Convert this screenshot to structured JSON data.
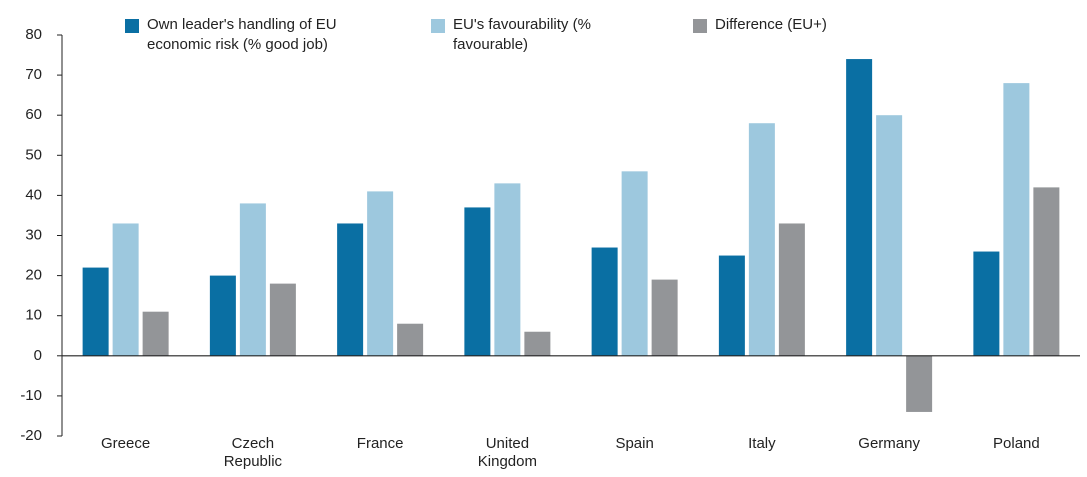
{
  "chart_data": {
    "type": "bar",
    "categories": [
      "Greece",
      "Czech Republic",
      "France",
      "United Kingdom",
      "Spain",
      "Italy",
      "Germany",
      "Poland"
    ],
    "series": [
      {
        "name": "Own leader's handling of EU economic risk (% good job)",
        "color": "#0a6fa3",
        "values": [
          22,
          20,
          33,
          37,
          27,
          25,
          74,
          26
        ]
      },
      {
        "name": "EU's favourability (% favourable)",
        "color": "#9dc8de",
        "values": [
          33,
          38,
          41,
          43,
          46,
          58,
          60,
          68
        ]
      },
      {
        "name": "Difference (EU+)",
        "color": "#939598",
        "values": [
          11,
          18,
          8,
          6,
          19,
          33,
          -14,
          42
        ]
      }
    ],
    "ylim": [
      -20,
      80
    ],
    "yticks": [
      -20,
      -10,
      0,
      10,
      20,
      30,
      40,
      50,
      60,
      70,
      80
    ]
  }
}
